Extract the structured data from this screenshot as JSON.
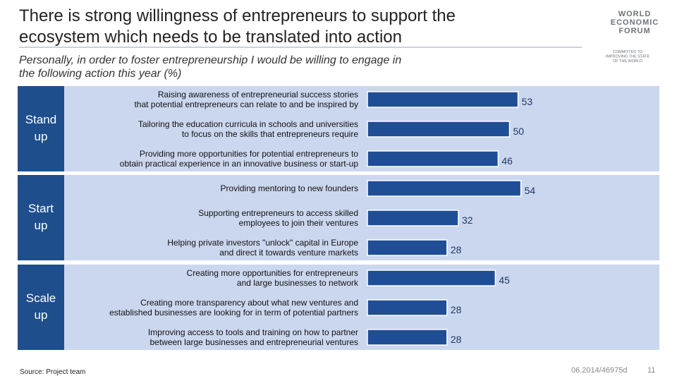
{
  "chart_data": {
    "type": "bar",
    "title": [
      "There is strong willingness of entrepreneurs to support the",
      "ecosystem which needs to be translated into action"
    ],
    "subtitle": [
      "Personally, in order to foster entrepreneurship I would be willing to engage in",
      "the following action this year (%)"
    ],
    "color": "#1f4e96",
    "groups": [
      {
        "name": "Stand up",
        "categories": [
          [
            "Raising awareness of entrepreneurial success stories",
            "that potential entrepreneurs can relate to and be inspired by"
          ],
          [
            "Tailoring the education curricula in schools and universities",
            "to focus on the skills that entrepreneurs require"
          ],
          [
            "Providing more opportunities for potential entrepreneurs to",
            "obtain practical experience in an innovative business or start-up"
          ]
        ],
        "values": [
          53,
          50,
          46
        ]
      },
      {
        "name": "Start up",
        "categories": [
          [
            "Providing mentoring to new founders"
          ],
          [
            "Supporting entrepreneurs to access skilled",
            "employees to join their ventures"
          ],
          [
            "Helping private investors \"unlock\" capital in Europe",
            "and direct it towards venture markets"
          ]
        ],
        "values": [
          54,
          32,
          28
        ]
      },
      {
        "name": "Scale up",
        "categories": [
          [
            "Creating more opportunities for entrepreneurs",
            "and large businesses to network"
          ],
          [
            "Creating more transparency about what new ventures and",
            "established businesses are looking for in term of potential partners"
          ],
          [
            "Improving access to tools and training on how to partner",
            "between large businesses and entrepreneurial ventures"
          ]
        ],
        "values": [
          45,
          28,
          28
        ]
      }
    ]
  },
  "logo": {
    "name": [
      "WORLD",
      "ECONOMIC",
      "FORUM"
    ],
    "tagline": [
      "COMMITTED TO",
      "IMPROVING THE STATE",
      "OF THE WORLD"
    ]
  },
  "footer": {
    "source": "Source: Project team",
    "code": "06.2014/46975d",
    "page": "11"
  }
}
